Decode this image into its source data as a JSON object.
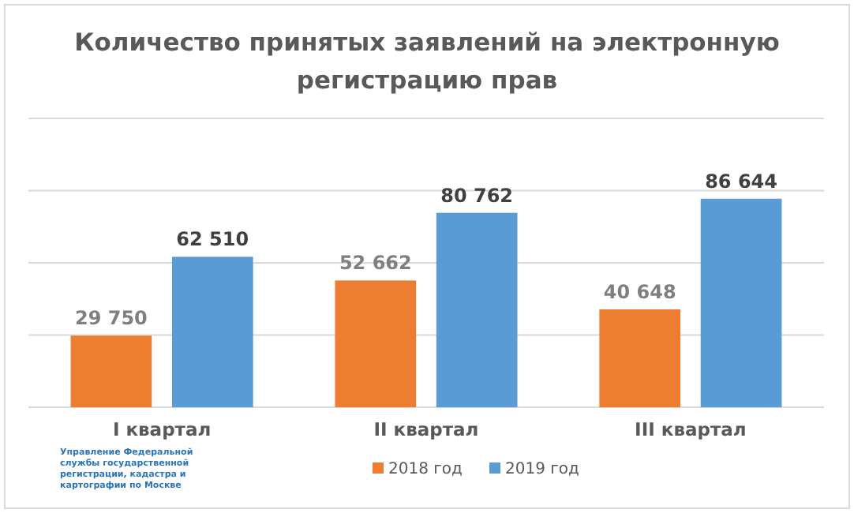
{
  "chart_data": {
    "type": "bar",
    "title": "Количество принятых заявлений на электронную регистрацию прав",
    "categories": [
      "I квартал",
      "II квартал",
      "III квартал"
    ],
    "series": [
      {
        "name": "2018 год",
        "color": "#ed7d31",
        "values": [
          29750,
          52662,
          40648
        ]
      },
      {
        "name": "2019 год",
        "color": "#5b9bd5",
        "values": [
          62510,
          80762,
          86644
        ]
      }
    ],
    "ylim": [
      0,
      120000
    ],
    "yticks": [
      {
        "value": 0,
        "label": null
      },
      {
        "value": 30000,
        "label": null
      },
      {
        "value": 60000,
        "label": null
      },
      {
        "value": 90000,
        "label": null
      },
      {
        "value": 120000,
        "label": null
      }
    ],
    "grid": true,
    "legend": "bottom",
    "data_labels": true,
    "annotations": [
      "Управление Федеральной службы государственной регистрации, кадастра и картографии по Москве"
    ]
  }
}
